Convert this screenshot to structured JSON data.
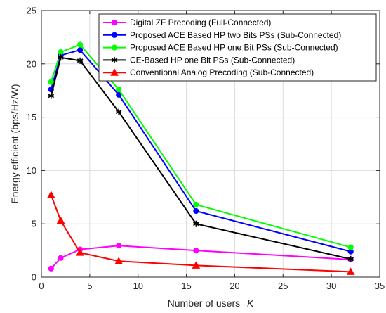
{
  "chart_data": {
    "type": "line",
    "xlabel": "Number of users",
    "xlabel_var": "K",
    "ylabel": "Energy efficient (bps/Hz/W)",
    "xlim": [
      0,
      35
    ],
    "ylim": [
      0,
      25
    ],
    "xticks": [
      0,
      5,
      10,
      15,
      20,
      25,
      30,
      35
    ],
    "yticks": [
      0,
      5,
      10,
      15,
      20,
      25
    ],
    "grid": true,
    "legend_position": "top-right",
    "x": [
      1,
      2,
      4,
      8,
      16,
      32
    ],
    "series": [
      {
        "name": "Digital ZF Precoding (Full-Connected)",
        "color": "#ff00ff",
        "marker": "circle",
        "values": [
          0.8,
          1.8,
          2.6,
          2.95,
          2.5,
          1.65
        ]
      },
      {
        "name": "Proposed ACE Based HP two Bits PSs (Sub-Connected)",
        "color": "#0000ff",
        "marker": "circle",
        "values": [
          17.6,
          20.8,
          21.3,
          17.1,
          6.2,
          2.4
        ]
      },
      {
        "name": "Proposed ACE Based HP one Bit PSs (Sub-Connected)",
        "color": "#00ff00",
        "marker": "circle",
        "values": [
          18.3,
          21.1,
          21.8,
          17.6,
          6.8,
          2.8
        ]
      },
      {
        "name": "CE-Based HP one Bit PSs (Sub-Connected)",
        "color": "#000000",
        "marker": "hexstar",
        "values": [
          17.0,
          20.6,
          20.3,
          15.5,
          5.0,
          1.7
        ]
      },
      {
        "name": "Conventional Analog Precoding (Sub-Connected)",
        "color": "#ff0000",
        "marker": "triangle",
        "values": [
          7.7,
          5.3,
          2.3,
          1.5,
          1.1,
          0.5
        ]
      }
    ]
  }
}
